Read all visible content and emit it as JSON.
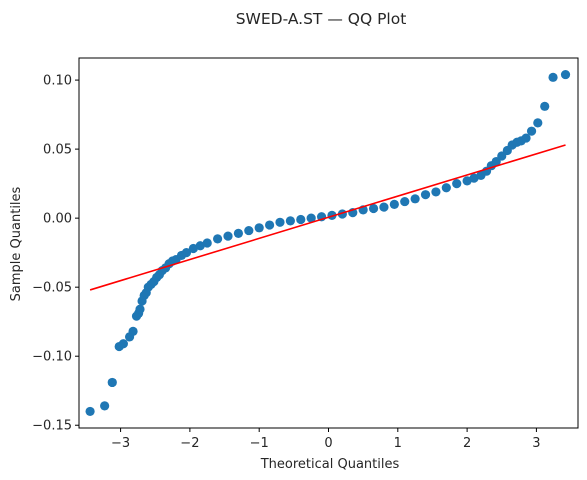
{
  "chart_data": {
    "type": "scatter",
    "title": "SWED-A.ST — QQ Plot",
    "xlabel": "Theoretical Quantiles",
    "ylabel": "Sample Quantiles",
    "xlim": [
      -3.6,
      3.6
    ],
    "ylim": [
      -0.152,
      0.116
    ],
    "xticks": [
      -3,
      -2,
      -1,
      0,
      1,
      2,
      3
    ],
    "xtick_labels": [
      "−3",
      "−2",
      "−1",
      "0",
      "1",
      "2",
      "3"
    ],
    "yticks": [
      -0.15,
      -0.1,
      -0.05,
      0.0,
      0.05,
      0.1
    ],
    "ytick_labels": [
      "−0.15",
      "−0.10",
      "−0.05",
      "0.00",
      "0.05",
      "0.10"
    ],
    "grid": false,
    "colors": {
      "points": "#1f77b4",
      "reference_line": "#ff0000",
      "axes": "#000000"
    },
    "series": [
      {
        "kind": "points",
        "x": [
          -3.44,
          -3.23,
          -3.12,
          -3.02,
          -2.96,
          -2.87,
          -2.82,
          -2.77,
          -2.74,
          -2.72,
          -2.69,
          -2.66,
          -2.63,
          -2.6,
          -2.56,
          -2.52,
          -2.48,
          -2.44,
          -2.4,
          -2.35,
          -2.3,
          -2.25,
          -2.2,
          -2.12,
          -2.05,
          -1.95,
          -1.85,
          -1.75,
          -1.6,
          -1.45,
          -1.3,
          -1.15,
          -1.0,
          -0.85,
          -0.7,
          -0.55,
          -0.4,
          -0.25,
          -0.1,
          0.05,
          0.2,
          0.35,
          0.5,
          0.65,
          0.8,
          0.95,
          1.1,
          1.25,
          1.4,
          1.55,
          1.7,
          1.85,
          2.0,
          2.1,
          2.2,
          2.28,
          2.35,
          2.42,
          2.5,
          2.58,
          2.65,
          2.72,
          2.78,
          2.85,
          2.93,
          3.02,
          3.12,
          3.24,
          3.42
        ],
        "y": [
          -0.14,
          -0.136,
          -0.119,
          -0.093,
          -0.091,
          -0.086,
          -0.082,
          -0.071,
          -0.069,
          -0.066,
          -0.06,
          -0.056,
          -0.054,
          -0.05,
          -0.048,
          -0.046,
          -0.043,
          -0.041,
          -0.038,
          -0.036,
          -0.033,
          -0.031,
          -0.03,
          -0.027,
          -0.025,
          -0.022,
          -0.02,
          -0.018,
          -0.015,
          -0.013,
          -0.011,
          -0.009,
          -0.007,
          -0.005,
          -0.003,
          -0.002,
          -0.001,
          0.0,
          0.001,
          0.002,
          0.003,
          0.004,
          0.006,
          0.007,
          0.008,
          0.01,
          0.012,
          0.014,
          0.017,
          0.019,
          0.022,
          0.025,
          0.027,
          0.029,
          0.031,
          0.034,
          0.038,
          0.041,
          0.045,
          0.049,
          0.053,
          0.055,
          0.056,
          0.058,
          0.063,
          0.069,
          0.081,
          0.102,
          0.104
        ]
      },
      {
        "kind": "reference_line",
        "x": [
          -3.44,
          3.42
        ],
        "y": [
          -0.052,
          0.053
        ]
      }
    ]
  }
}
